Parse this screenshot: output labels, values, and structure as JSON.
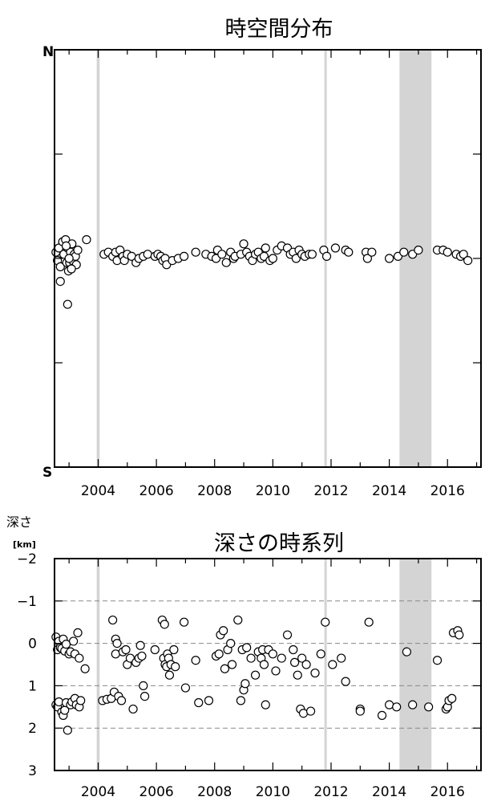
{
  "chart_data": [
    {
      "type": "scatter",
      "title": "時空間分布",
      "y_top_label": "N",
      "y_bottom_label": "S",
      "xlim": [
        2002.5,
        2017.15
      ],
      "ylim": [
        -1,
        1
      ],
      "x_ticks": [
        2004,
        2006,
        2008,
        2010,
        2012,
        2014,
        2016
      ],
      "shaded_periods": [
        [
          2003.95,
          2004.05
        ],
        [
          2011.77,
          2011.85
        ],
        [
          2014.35,
          2015.45
        ]
      ],
      "grid": false,
      "series": [
        {
          "marker": "open-circle",
          "points": [
            [
              2002.55,
              0.03
            ],
            [
              2002.6,
              -0.01
            ],
            [
              2002.65,
              0.05
            ],
            [
              2002.7,
              -0.04
            ],
            [
              2002.7,
              -0.11
            ],
            [
              2002.78,
              0.08
            ],
            [
              2002.82,
              0.02
            ],
            [
              2002.88,
              0.09
            ],
            [
              2002.92,
              -0.02
            ],
            [
              2002.95,
              0.05
            ],
            [
              2002.98,
              -0.06
            ],
            [
              2003.02,
              -0.02
            ],
            [
              2003.05,
              0.03
            ],
            [
              2003.1,
              0.07
            ],
            [
              2003.12,
              -0.01
            ],
            [
              2003.18,
              0.02
            ],
            [
              2003.22,
              0.01
            ],
            [
              2003.25,
              -0.03
            ],
            [
              2003.3,
              0.04
            ],
            [
              2003.6,
              0.09
            ],
            [
              2002.95,
              -0.22
            ],
            [
              2003.0,
              0.0
            ],
            [
              2002.9,
              0.06
            ],
            [
              2003.08,
              -0.05
            ],
            [
              2004.2,
              0.02
            ],
            [
              2004.35,
              0.03
            ],
            [
              2004.5,
              0.01
            ],
            [
              2004.6,
              0.03
            ],
            [
              2004.65,
              -0.01
            ],
            [
              2004.75,
              0.04
            ],
            [
              2004.85,
              0.01
            ],
            [
              2004.9,
              -0.01
            ],
            [
              2005.0,
              0.02
            ],
            [
              2005.15,
              0.01
            ],
            [
              2005.3,
              -0.02
            ],
            [
              2005.4,
              0.0
            ],
            [
              2005.55,
              0.01
            ],
            [
              2005.7,
              0.02
            ],
            [
              2005.95,
              0.01
            ],
            [
              2006.05,
              0.02
            ],
            [
              2006.15,
              0.01
            ],
            [
              2006.22,
              -0.01
            ],
            [
              2006.3,
              0.0
            ],
            [
              2006.35,
              -0.03
            ],
            [
              2006.55,
              -0.01
            ],
            [
              2006.75,
              0.0
            ],
            [
              2006.95,
              0.01
            ],
            [
              2007.35,
              0.03
            ],
            [
              2007.7,
              0.02
            ],
            [
              2007.9,
              0.01
            ],
            [
              2008.05,
              0.0
            ],
            [
              2008.1,
              0.04
            ],
            [
              2008.25,
              0.02
            ],
            [
              2008.4,
              -0.02
            ],
            [
              2008.55,
              0.03
            ],
            [
              2008.65,
              0.0
            ],
            [
              2008.7,
              0.01
            ],
            [
              2008.9,
              0.02
            ],
            [
              2009.0,
              0.07
            ],
            [
              2009.1,
              0.03
            ],
            [
              2009.2,
              0.01
            ],
            [
              2009.3,
              -0.01
            ],
            [
              2009.4,
              0.02
            ],
            [
              2009.5,
              0.03
            ],
            [
              2009.6,
              0.0
            ],
            [
              2009.7,
              0.01
            ],
            [
              2009.75,
              0.05
            ],
            [
              2009.9,
              -0.01
            ],
            [
              2010.0,
              0.0
            ],
            [
              2010.15,
              0.04
            ],
            [
              2010.3,
              0.06
            ],
            [
              2010.5,
              0.05
            ],
            [
              2010.6,
              0.02
            ],
            [
              2010.7,
              0.03
            ],
            [
              2010.8,
              0.0
            ],
            [
              2010.9,
              0.04
            ],
            [
              2011.0,
              0.02
            ],
            [
              2011.1,
              0.01
            ],
            [
              2011.25,
              0.02
            ],
            [
              2011.35,
              0.02
            ],
            [
              2011.75,
              0.04
            ],
            [
              2011.85,
              0.01
            ],
            [
              2012.15,
              0.05
            ],
            [
              2012.5,
              0.04
            ],
            [
              2012.6,
              0.03
            ],
            [
              2013.2,
              0.03
            ],
            [
              2013.25,
              0.0
            ],
            [
              2013.4,
              0.03
            ],
            [
              2014.0,
              0.0
            ],
            [
              2014.3,
              0.01
            ],
            [
              2014.5,
              0.03
            ],
            [
              2014.8,
              0.02
            ],
            [
              2015.0,
              0.04
            ],
            [
              2015.65,
              0.04
            ],
            [
              2015.85,
              0.04
            ],
            [
              2016.0,
              0.03
            ],
            [
              2016.3,
              0.02
            ],
            [
              2016.45,
              0.01
            ],
            [
              2016.55,
              0.02
            ],
            [
              2016.7,
              -0.01
            ]
          ]
        }
      ]
    },
    {
      "type": "scatter",
      "title": "深さの時系列",
      "ylabel": "深さ",
      "yunit": "[km]",
      "xlim": [
        2002.5,
        2017.15
      ],
      "ylim": [
        -2,
        3
      ],
      "y_ticks": [
        -2,
        -1,
        0,
        1,
        2,
        3
      ],
      "x_ticks": [
        2004,
        2006,
        2008,
        2010,
        2012,
        2014,
        2016
      ],
      "shaded_periods": [
        [
          2003.95,
          2004.05
        ],
        [
          2011.77,
          2011.85
        ],
        [
          2014.35,
          2015.45
        ]
      ],
      "grid": "dashed horizontal at -1, 0, 1, 2",
      "series": [
        {
          "marker": "open-circle",
          "points": [
            [
              2002.55,
              -0.15
            ],
            [
              2002.6,
              0.15
            ],
            [
              2002.65,
              -0.05
            ],
            [
              2002.7,
              0.1
            ],
            [
              2002.75,
              0.12
            ],
            [
              2002.8,
              -0.1
            ],
            [
              2002.85,
              0.18
            ],
            [
              2002.9,
              0.02
            ],
            [
              2003.0,
              0.25
            ],
            [
              2003.05,
              0.2
            ],
            [
              2003.15,
              -0.05
            ],
            [
              2003.2,
              0.25
            ],
            [
              2003.3,
              -0.25
            ],
            [
              2003.35,
              0.35
            ],
            [
              2003.55,
              0.6
            ],
            [
              2002.55,
              1.45
            ],
            [
              2002.6,
              1.5
            ],
            [
              2002.65,
              1.38
            ],
            [
              2002.75,
              1.62
            ],
            [
              2002.8,
              1.7
            ],
            [
              2002.85,
              1.58
            ],
            [
              2002.9,
              1.4
            ],
            [
              2002.95,
              2.05
            ],
            [
              2003.05,
              1.45
            ],
            [
              2003.1,
              1.38
            ],
            [
              2003.2,
              1.3
            ],
            [
              2003.25,
              1.45
            ],
            [
              2003.35,
              1.5
            ],
            [
              2003.4,
              1.35
            ],
            [
              2004.15,
              1.35
            ],
            [
              2004.3,
              1.32
            ],
            [
              2004.45,
              1.3
            ],
            [
              2004.5,
              -0.55
            ],
            [
              2004.55,
              1.15
            ],
            [
              2004.6,
              0.25
            ],
            [
              2004.6,
              -0.1
            ],
            [
              2004.65,
              0.0
            ],
            [
              2004.7,
              1.25
            ],
            [
              2004.8,
              1.35
            ],
            [
              2004.85,
              0.2
            ],
            [
              2004.95,
              0.15
            ],
            [
              2005.0,
              0.5
            ],
            [
              2005.1,
              0.35
            ],
            [
              2005.2,
              1.55
            ],
            [
              2005.3,
              0.45
            ],
            [
              2005.4,
              0.35
            ],
            [
              2005.45,
              0.05
            ],
            [
              2005.5,
              0.3
            ],
            [
              2005.55,
              1.0
            ],
            [
              2005.6,
              1.25
            ],
            [
              2005.95,
              0.15
            ],
            [
              2006.2,
              -0.55
            ],
            [
              2006.25,
              0.35
            ],
            [
              2006.28,
              -0.45
            ],
            [
              2006.3,
              0.5
            ],
            [
              2006.35,
              0.55
            ],
            [
              2006.38,
              0.25
            ],
            [
              2006.42,
              0.35
            ],
            [
              2006.45,
              0.75
            ],
            [
              2006.5,
              0.5
            ],
            [
              2006.6,
              0.15
            ],
            [
              2006.65,
              0.55
            ],
            [
              2006.95,
              -0.5
            ],
            [
              2007.0,
              1.05
            ],
            [
              2007.35,
              0.4
            ],
            [
              2007.45,
              1.4
            ],
            [
              2007.8,
              1.35
            ],
            [
              2008.05,
              0.3
            ],
            [
              2008.15,
              0.25
            ],
            [
              2008.2,
              -0.2
            ],
            [
              2008.3,
              -0.3
            ],
            [
              2008.35,
              0.6
            ],
            [
              2008.45,
              0.15
            ],
            [
              2008.55,
              0.0
            ],
            [
              2008.6,
              0.5
            ],
            [
              2008.8,
              -0.55
            ],
            [
              2008.9,
              1.35
            ],
            [
              2008.95,
              0.15
            ],
            [
              2009.0,
              1.1
            ],
            [
              2009.05,
              0.95
            ],
            [
              2009.1,
              0.1
            ],
            [
              2009.25,
              0.35
            ],
            [
              2009.4,
              0.75
            ],
            [
              2009.5,
              0.2
            ],
            [
              2009.6,
              0.35
            ],
            [
              2009.65,
              0.15
            ],
            [
              2009.7,
              0.5
            ],
            [
              2009.75,
              1.45
            ],
            [
              2009.85,
              0.15
            ],
            [
              2010.0,
              0.25
            ],
            [
              2010.1,
              0.65
            ],
            [
              2010.3,
              0.35
            ],
            [
              2010.5,
              -0.2
            ],
            [
              2010.7,
              0.15
            ],
            [
              2010.75,
              0.45
            ],
            [
              2010.85,
              0.75
            ],
            [
              2010.95,
              1.55
            ],
            [
              2011.0,
              0.35
            ],
            [
              2011.05,
              1.65
            ],
            [
              2011.15,
              0.5
            ],
            [
              2011.3,
              1.6
            ],
            [
              2011.45,
              0.7
            ],
            [
              2011.65,
              0.25
            ],
            [
              2011.8,
              -0.5
            ],
            [
              2012.05,
              0.5
            ],
            [
              2012.35,
              0.35
            ],
            [
              2012.5,
              0.9
            ],
            [
              2013.0,
              1.55
            ],
            [
              2013.0,
              1.6
            ],
            [
              2013.3,
              -0.5
            ],
            [
              2013.75,
              1.7
            ],
            [
              2014.0,
              1.45
            ],
            [
              2014.25,
              1.5
            ],
            [
              2014.6,
              0.2
            ],
            [
              2014.8,
              1.45
            ],
            [
              2015.35,
              1.5
            ],
            [
              2015.65,
              0.4
            ],
            [
              2015.95,
              1.55
            ],
            [
              2016.0,
              1.5
            ],
            [
              2016.05,
              1.35
            ],
            [
              2016.15,
              1.3
            ],
            [
              2016.2,
              -0.25
            ],
            [
              2016.35,
              -0.3
            ],
            [
              2016.4,
              -0.2
            ]
          ]
        }
      ]
    }
  ]
}
